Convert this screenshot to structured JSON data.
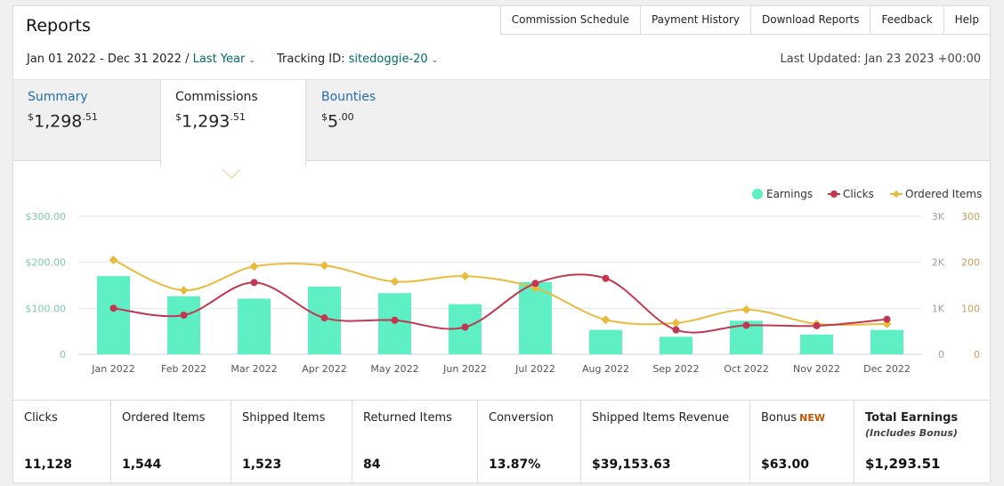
{
  "title": "Reports",
  "top_nav": [
    "Commission Schedule",
    "Payment History",
    "Download Reports",
    "Feedback",
    "Help"
  ],
  "date_range": {
    "range": "Jan 01 2022 - Dec 31 2022 /",
    "period_link": "Last Year",
    "tracking_label": "Tracking ID:",
    "tracking_id": "sitedoggie-20",
    "last_updated": "Last Updated: Jan 23 2023 +00:00"
  },
  "tabs": [
    {
      "label": "Summary",
      "currency": "$",
      "whole": "1,298",
      "cents": ".51"
    },
    {
      "label": "Commissions",
      "currency": "$",
      "whole": "1,293",
      "cents": ".51"
    },
    {
      "label": "Bounties",
      "currency": "$",
      "whole": "5",
      "cents": ".00"
    }
  ],
  "active_tab": "Commissions",
  "colors": {
    "earnings": "#5eefc4",
    "clicks": "#c1374f",
    "ordered_items": "#e8bb3e",
    "link": "#1f6fa8"
  },
  "chart_data": {
    "type": "bar",
    "categories": [
      "Jan 2022",
      "Feb 2022",
      "Mar 2022",
      "Apr 2022",
      "May 2022",
      "Jun 2022",
      "Jul 2022",
      "Aug 2022",
      "Sep 2022",
      "Oct 2022",
      "Nov 2022",
      "Dec 2022"
    ],
    "series": [
      {
        "name": "Earnings",
        "type": "bar",
        "axis": "left",
        "values": [
          170,
          126,
          121,
          147,
          133,
          109,
          157,
          53,
          38,
          73,
          43,
          53
        ]
      },
      {
        "name": "Clicks",
        "type": "line",
        "axis": "right1",
        "values": [
          1000,
          850,
          1560,
          790,
          740,
          590,
          1540,
          1650,
          530,
          630,
          620,
          760
        ]
      },
      {
        "name": "Ordered Items",
        "type": "line",
        "axis": "right2",
        "values": [
          205,
          139,
          191,
          193,
          158,
          170,
          144,
          75,
          68,
          97,
          66,
          66
        ]
      }
    ],
    "axes": {
      "left": {
        "ticks": [
          "$300.00",
          "$200.00",
          "$100.00",
          "0"
        ],
        "range": [
          0,
          300
        ]
      },
      "right1": {
        "ticks": [
          "3K",
          "2K",
          "1K",
          "0"
        ],
        "range": [
          0,
          3000
        ]
      },
      "right2": {
        "ticks": [
          "300",
          "200",
          "100",
          "0"
        ],
        "range": [
          0,
          300
        ]
      }
    },
    "legend_position": "top-right",
    "grid": true
  },
  "stats": [
    {
      "label": "Clicks",
      "value": "11,128"
    },
    {
      "label": "Ordered Items",
      "value": "1,544"
    },
    {
      "label": "Shipped Items",
      "value": "1,523"
    },
    {
      "label": "Returned Items",
      "value": "84"
    },
    {
      "label": "Conversion",
      "value": "13.87%"
    },
    {
      "label": "Shipped Items Revenue",
      "value": "$39,153.63"
    },
    {
      "label": "Bonus",
      "badge": "NEW",
      "value": "$63.00"
    },
    {
      "label": "Total Earnings",
      "sub": "(Includes Bonus)",
      "value": "$1,293.51"
    }
  ]
}
